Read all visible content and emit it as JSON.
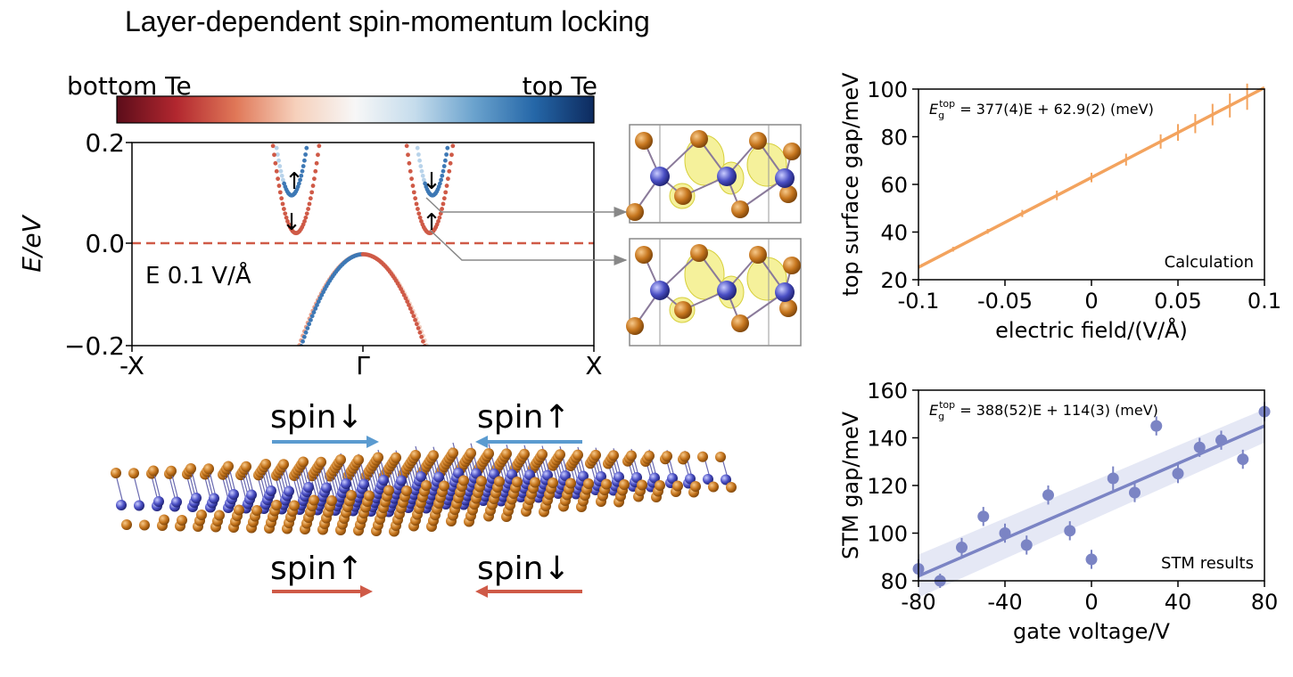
{
  "title": "Layer-dependent spin-momentum locking",
  "colorbar": {
    "left_label": "bottom Te",
    "right_label": "top Te",
    "colors": [
      "#5c0d1a",
      "#b2272f",
      "#e07858",
      "#f6d0bb",
      "#f7f7f7",
      "#c5dcec",
      "#6aa2cd",
      "#2567a8",
      "#0d2a5e"
    ]
  },
  "band_panel": {
    "ylabel": "E/eV",
    "ytick_labels": [
      "0.2",
      "0.0",
      "−0.2"
    ],
    "xtick_labels": [
      "-X",
      "Γ",
      "X"
    ],
    "annotation": "E 0.1 V/Å",
    "left_valley_arrows": [
      "↑",
      "↓"
    ],
    "right_valley_arrows": [
      "↓",
      "↑"
    ]
  },
  "spin_labels": {
    "top_left": "spin↓",
    "top_right": "spin↑",
    "bottom_left": "spin↑",
    "bottom_right": "spin↓"
  },
  "colors": {
    "top_te": "#3d78b5",
    "bottom_te": "#cf5a47",
    "calc": "#f3a35e",
    "stm": "#7b84c4",
    "fermi": "#cf5a47",
    "te_atom": "#c7771f",
    "metal_atom": "#4a4fc4"
  },
  "chart_data": [
    {
      "type": "line",
      "title": "",
      "xlabel": "electric field/(V/Å)",
      "ylabel": "top surface gap/meV",
      "xlim": [
        -0.1,
        0.1
      ],
      "ylim": [
        20,
        100
      ],
      "xticks": [
        -0.1,
        -0.05,
        0,
        0.05,
        0.1
      ],
      "xtick_labels": [
        "-0.1",
        "-0.05",
        "0",
        "0.05",
        "0.1"
      ],
      "yticks": [
        20,
        40,
        60,
        80,
        100
      ],
      "ytick_labels": [
        "20",
        "40",
        "60",
        "80",
        "100"
      ],
      "fit_label": "E_g^top = 377(4)E + 62.9(2) (meV)",
      "fit_parts": {
        "sym": "E",
        "sub": "g",
        "sup": "top",
        "rest": " = 377(4)E + 62.9(2) (meV)"
      },
      "fit": {
        "slope": 377,
        "intercept": 62.9
      },
      "annotation": "Calculation",
      "series": [
        {
          "x": [
            -0.08,
            -0.06,
            -0.04,
            -0.02,
            0.0,
            0.02,
            0.04,
            0.05,
            0.06,
            0.07,
            0.08,
            0.09
          ],
          "y": [
            32.8,
            40.3,
            47.8,
            55.4,
            62.9,
            70.4,
            78.0,
            81.8,
            85.5,
            89.3,
            93.1,
            96.8
          ],
          "err": [
            1.0,
            1.0,
            1.5,
            2.0,
            2.0,
            2.5,
            3.0,
            3.5,
            4.0,
            4.5,
            5.0,
            5.5
          ]
        }
      ]
    },
    {
      "type": "scatter",
      "title": "",
      "xlabel": "gate voltage/V",
      "ylabel": "STM gap/meV",
      "xlim": [
        -80,
        80
      ],
      "ylim": [
        80,
        160
      ],
      "xticks": [
        -80,
        -40,
        0,
        40,
        80
      ],
      "xtick_labels": [
        "-80",
        "-40",
        "0",
        "40",
        "80"
      ],
      "yticks": [
        80,
        100,
        120,
        140,
        160
      ],
      "ytick_labels": [
        "80",
        "100",
        "120",
        "140",
        "160"
      ],
      "fit_label": "E_g^top = 388(52)E + 114(3) (meV)",
      "fit_parts": {
        "sym": "E",
        "sub": "g",
        "sup": "top",
        "rest": " = 388(52)E + 114(3) (meV)"
      },
      "fit": {
        "y_at_xmin": 82,
        "y_at_xmax": 145
      },
      "annotation": "STM results",
      "series": [
        {
          "x": [
            -80,
            -70,
            -60,
            -50,
            -40,
            -30,
            -20,
            -10,
            0,
            10,
            20,
            30,
            40,
            50,
            60,
            70,
            80
          ],
          "y": [
            85,
            80,
            94,
            107,
            100,
            95,
            116,
            101,
            89,
            123,
            117,
            145,
            125,
            136,
            139,
            131,
            151
          ],
          "err": [
            4,
            3,
            4,
            4,
            4,
            4,
            4,
            4,
            4,
            5,
            4,
            4,
            4,
            4,
            4,
            4,
            4
          ]
        }
      ]
    }
  ]
}
